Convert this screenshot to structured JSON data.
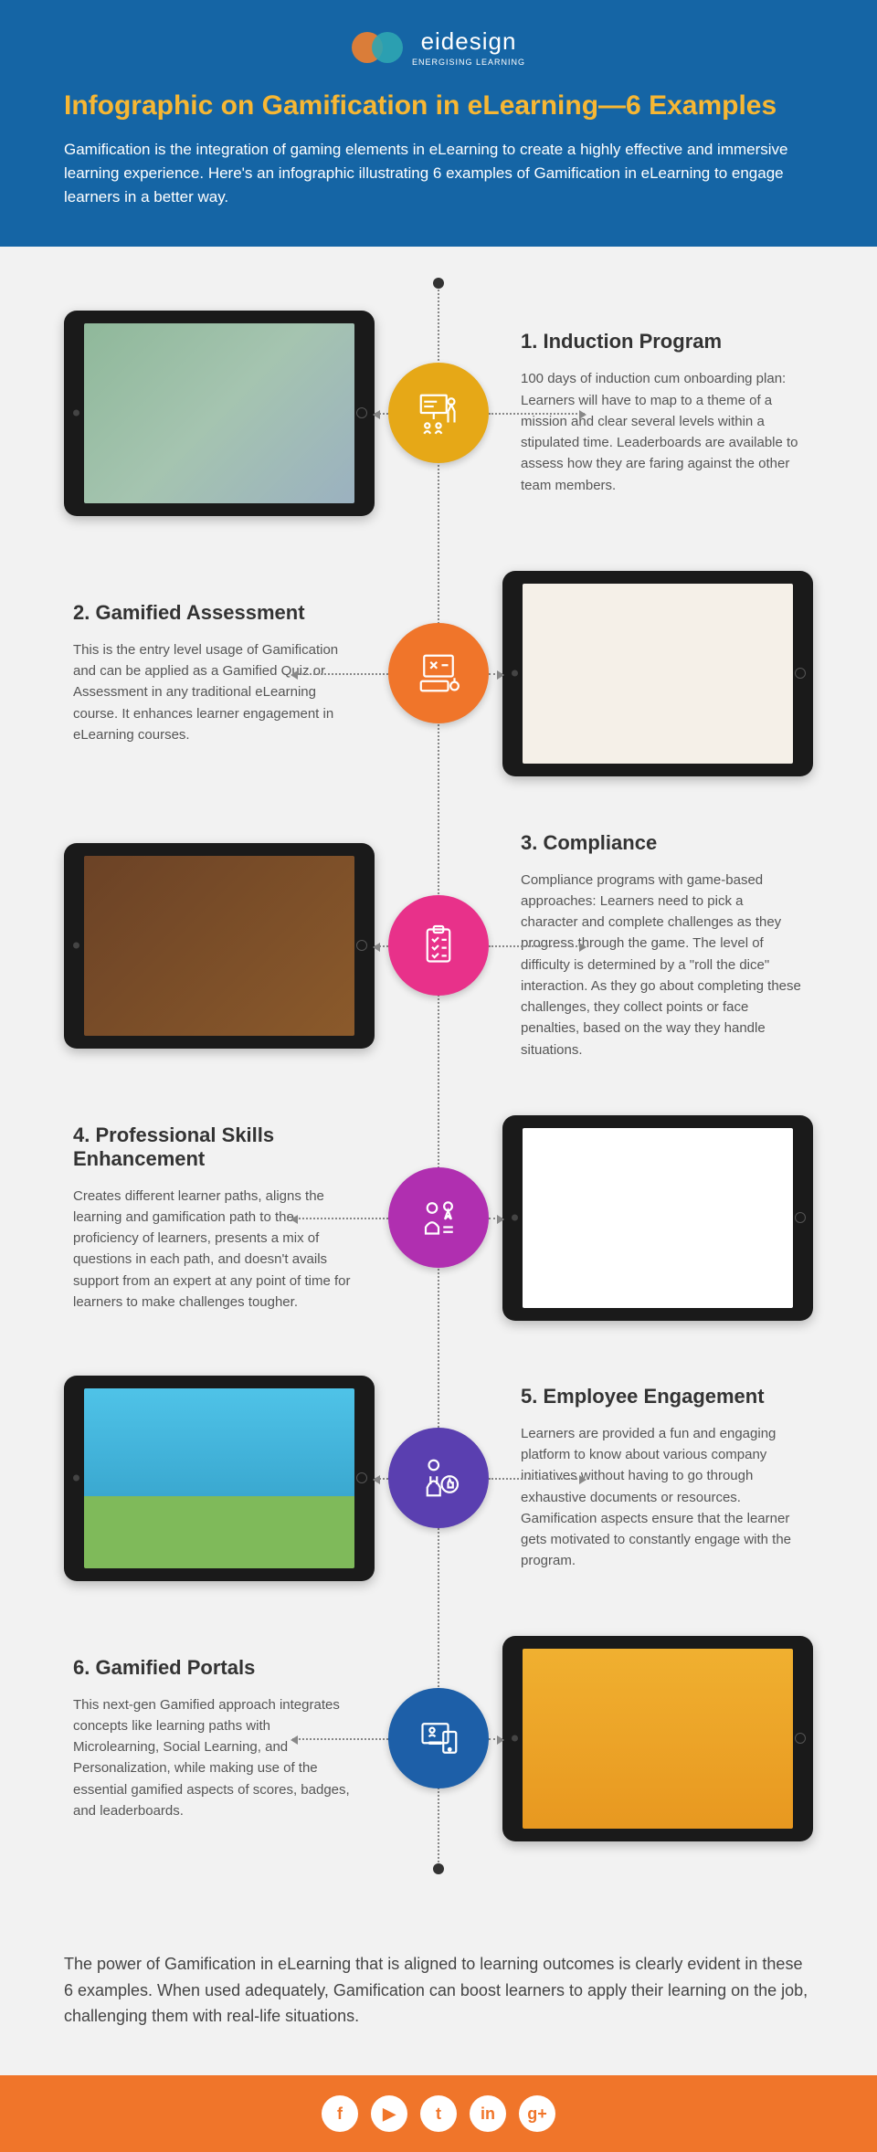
{
  "brand": {
    "name": "eidesign",
    "tagline": "ENERGISING LEARNING"
  },
  "title": "Infographic on Gamification in eLearning—6 Examples",
  "intro": "Gamification is the integration of gaming elements in eLearning to create a highly effective and immersive learning experience. Here's an infographic illustrating 6 examples of Gamification in eLearning to engage learners in a better way.",
  "nodes": [
    {
      "color": "#e6a817"
    },
    {
      "color": "#f0752a"
    },
    {
      "color": "#e8318a"
    },
    {
      "color": "#b02fb0"
    },
    {
      "color": "#5a3fb0"
    },
    {
      "color": "#1d5fa8"
    }
  ],
  "items": [
    {
      "num": "1.",
      "title": "Induction Program",
      "desc": "100 days of induction cum onboarding plan: Learners will have to map to a theme of a mission and clear several levels within a stipulated time. Leaderboards are available to assess how they are faring against the other team members."
    },
    {
      "num": "2.",
      "title": "Gamified Assessment",
      "desc": "This is the entry level usage of Gamification and can be applied as a Gamified Quiz or Assessment in any traditional eLearning course. It enhances learner engagement in eLearning courses."
    },
    {
      "num": "3.",
      "title": "Compliance",
      "desc": "Compliance programs with game-based approaches: Learners need to pick a character and complete challenges as they progress through the game. The level of difficulty is determined by a \"roll the dice\" interaction. As they go about completing these challenges, they collect points or face penalties, based on the way they handle situations."
    },
    {
      "num": "4.",
      "title": "Professional Skills Enhancement",
      "desc": "Creates different learner paths, aligns the learning and gamification path to the proficiency of learners, presents a mix of questions in each path, and doesn't avails support from an expert at any point of time for learners to make challenges tougher."
    },
    {
      "num": "5.",
      "title": "Employee Engagement",
      "desc": "Learners are provided a fun and engaging platform to know about various company initiatives without having to go through exhaustive documents or resources. Gamification aspects ensure that the learner gets motivated to constantly engage with the program."
    },
    {
      "num": "6.",
      "title": "Gamified Portals",
      "desc": "This next-gen Gamified approach integrates concepts like learning paths with Microlearning, Social Learning, and Personalization, while making use of the essential gamified aspects of scores, badges, and leaderboards."
    }
  ],
  "closing": "The power of Gamification in eLearning that is aligned to learning outcomes is clearly evident in these 6 examples. When used adequately, Gamification can boost learners to apply their learning on the job, challenging them with real-life situations.",
  "social": [
    "f",
    "▶",
    "t",
    "in",
    "g+"
  ],
  "social_names": [
    "facebook-icon",
    "youtube-icon",
    "twitter-icon",
    "linkedin-icon",
    "googleplus-icon"
  ]
}
